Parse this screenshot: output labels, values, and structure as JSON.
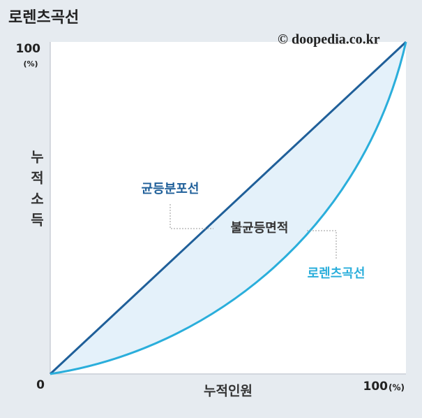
{
  "title": "로렌츠곡선",
  "copyright": "© doopedia.co.kr",
  "y_axis": {
    "top_label": "100",
    "top_unit": "(%)",
    "title": "누적소득"
  },
  "x_axis": {
    "origin_label": "0",
    "title": "누적인원",
    "end_label": "100",
    "end_unit": "(%)"
  },
  "annotations": {
    "equality_line": "균등분포선",
    "inequality_area": "불균등면적",
    "lorenz_curve": "로렌츠곡선"
  }
}
